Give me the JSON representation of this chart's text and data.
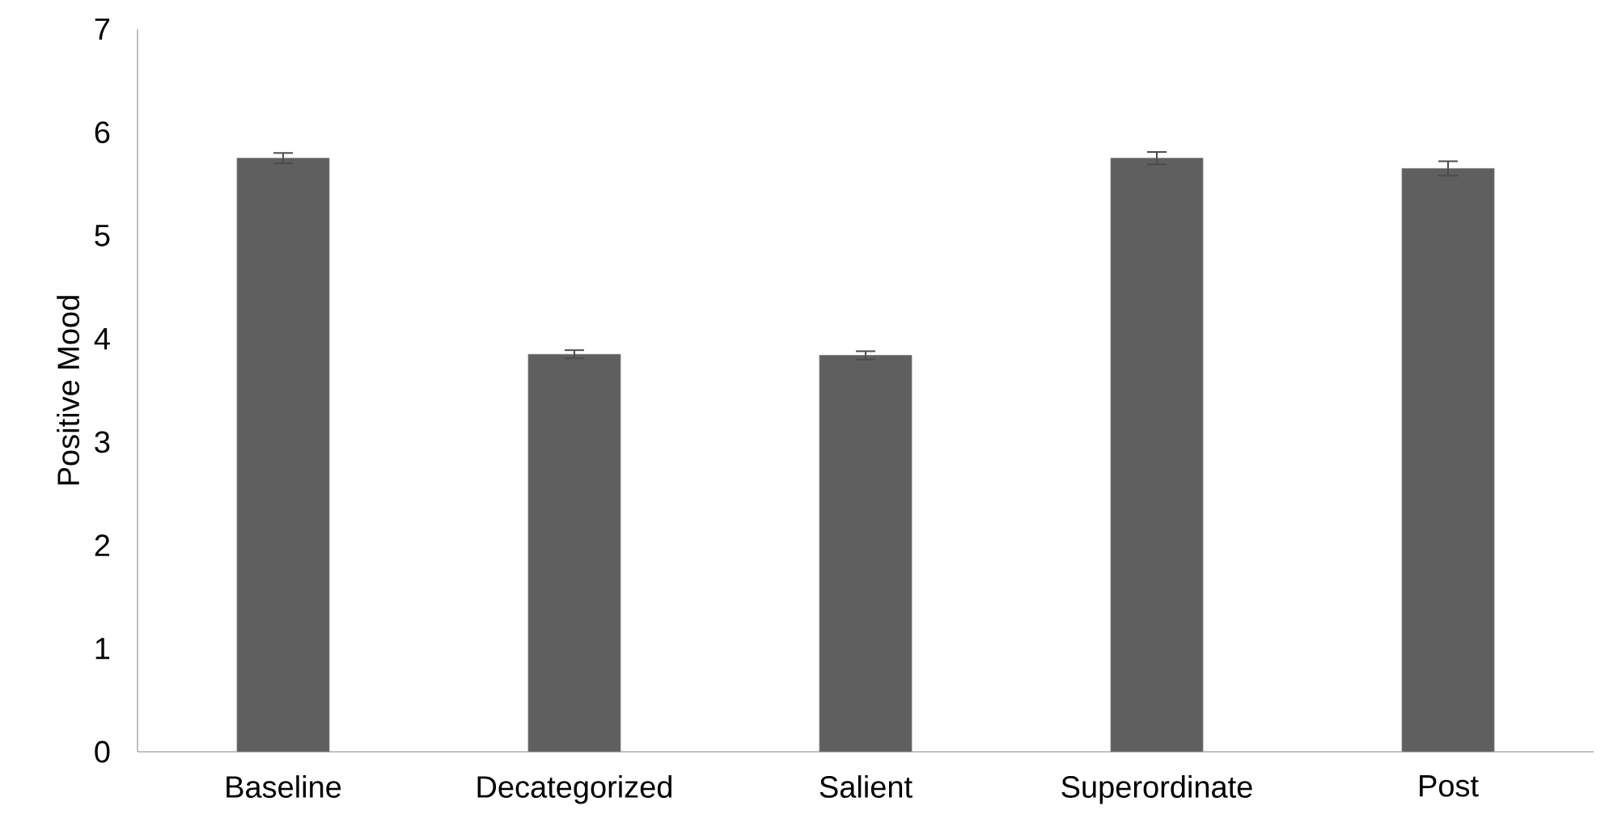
{
  "chart_data": {
    "type": "bar",
    "ylabel": "Positive Mood",
    "categories": [
      "Baseline",
      "Decategorized",
      "Salient",
      "Superordinate",
      "Post"
    ],
    "values": [
      5.75,
      3.85,
      3.84,
      5.75,
      5.65
    ],
    "errors": [
      0.05,
      0.04,
      0.04,
      0.06,
      0.07
    ],
    "color": "#5f5f5f",
    "ylim": [
      0,
      7
    ],
    "yticks": [
      0,
      1,
      2,
      3,
      4,
      5,
      6,
      7
    ],
    "grid": false
  }
}
